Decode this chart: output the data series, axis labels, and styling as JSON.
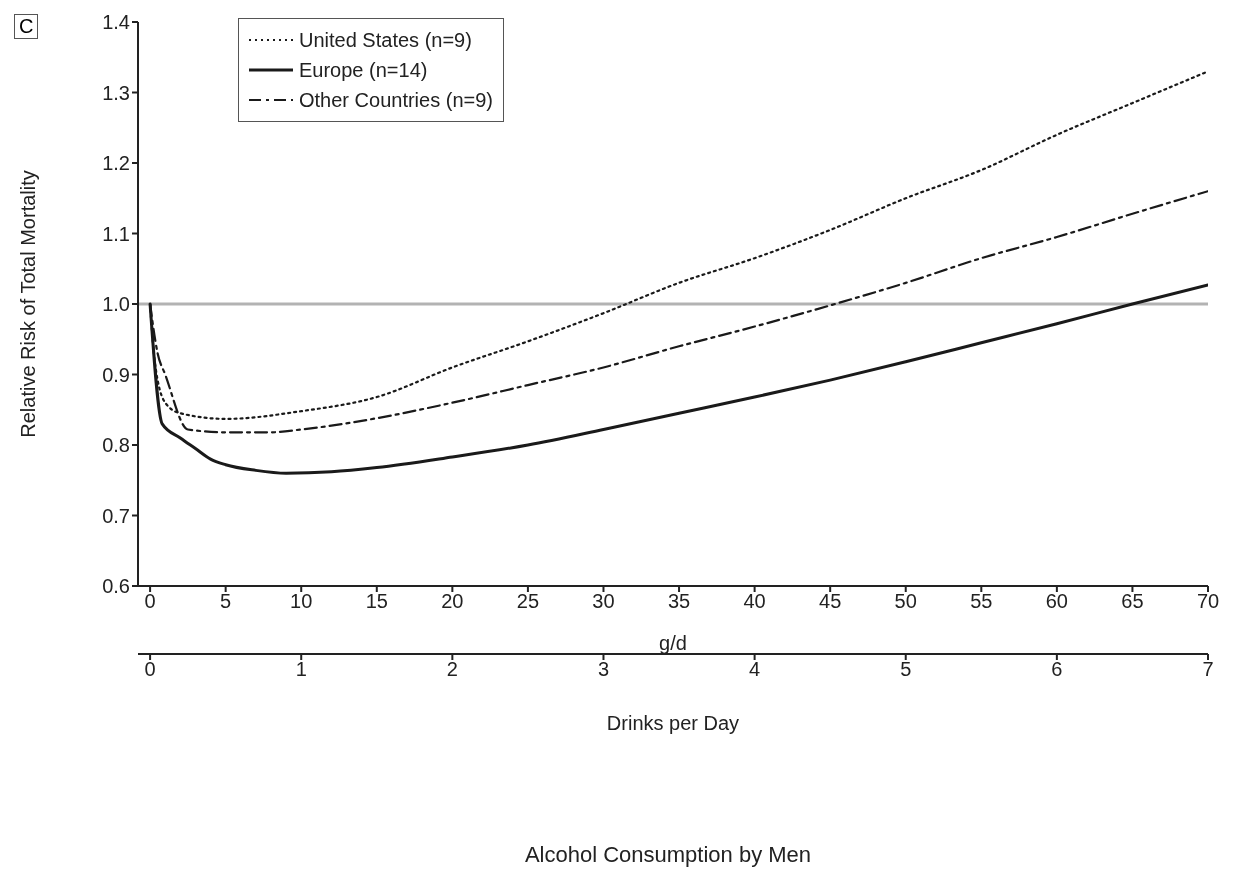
{
  "chart_data": {
    "type": "line",
    "xlabel": "g/d",
    "ylabel": "Relative Risk of Total Mortality",
    "x2label": "Drinks per Day",
    "subtitle": "Alcohol Consumption by Men",
    "annotations": [
      "C"
    ],
    "xlim": [
      -0.8,
      70
    ],
    "xticks": [
      0,
      5,
      10,
      15,
      20,
      25,
      30,
      35,
      40,
      45,
      50,
      55,
      60,
      65,
      70
    ],
    "x2lim": [
      -0.08,
      7
    ],
    "x2ticks": [
      0,
      1,
      2,
      3,
      4,
      5,
      6,
      7
    ],
    "ylim": [
      0.6,
      1.4
    ],
    "yticks": [
      0.6,
      0.7,
      0.8,
      0.9,
      {
        "value": 1.0,
        "label": "1.0"
      },
      1.1,
      1.2,
      1.3,
      1.4
    ],
    "grid": false,
    "legend": "top left",
    "marker": "none",
    "ref_lines": [
      {
        "axis": "y",
        "value": 1.0,
        "color": "#b3b3b3"
      }
    ],
    "series": [
      {
        "name": "United States (n=9)",
        "color": "#1a1a1a",
        "line_style": "dotted",
        "x": [
          0,
          0.3,
          1,
          2,
          5,
          10,
          15,
          20,
          25,
          30,
          35,
          40,
          45,
          50,
          55,
          60,
          65,
          70
        ],
        "values": [
          1.0,
          0.92,
          0.86,
          0.845,
          0.837,
          0.848,
          0.868,
          0.91,
          0.947,
          0.987,
          1.03,
          1.065,
          1.105,
          1.15,
          1.19,
          1.24,
          1.285,
          1.33
        ]
      },
      {
        "name": "Europe (n=14)",
        "color": "#1a1a1a",
        "line_style": "solid",
        "x": [
          0,
          0.8,
          2,
          3,
          4,
          5,
          7,
          9,
          12,
          15,
          20,
          25,
          30,
          35,
          40,
          45,
          50,
          55,
          60,
          65,
          70
        ],
        "values": [
          1.0,
          0.83,
          0.81,
          0.795,
          0.78,
          0.772,
          0.764,
          0.76,
          0.762,
          0.768,
          0.783,
          0.8,
          0.822,
          0.845,
          0.868,
          0.892,
          0.918,
          0.945,
          0.972,
          1.0,
          1.027
        ]
      },
      {
        "name": "Other Countries (n=9)",
        "color": "#1a1a1a",
        "line_style": "dashed",
        "x": [
          0,
          0.5,
          1,
          2.5,
          5,
          8,
          10,
          15,
          20,
          25,
          30,
          35,
          40,
          45,
          50,
          55,
          60,
          65,
          70
        ],
        "values": [
          1.0,
          0.93,
          0.9,
          0.822,
          0.818,
          0.818,
          0.822,
          0.838,
          0.86,
          0.885,
          0.91,
          0.94,
          0.968,
          0.998,
          1.03,
          1.065,
          1.095,
          1.128,
          1.16
        ]
      }
    ]
  }
}
